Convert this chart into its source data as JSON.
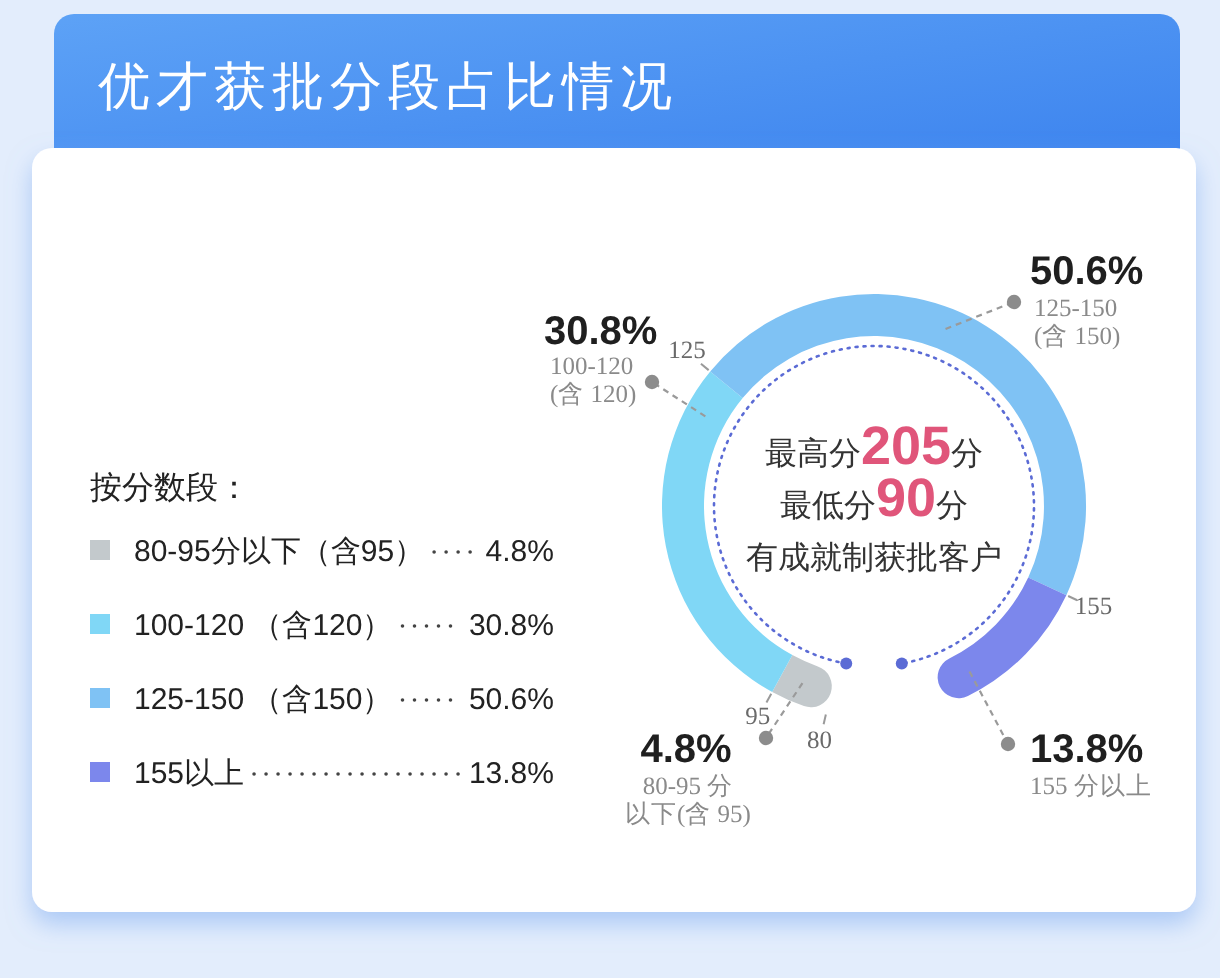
{
  "chart_data": {
    "type": "donut",
    "title": "优才获批分段占比情况",
    "legend_title": "按分数段：",
    "categories": [
      "80-95分以下（含95）",
      "100-120 （含120）",
      "125-150 （含150）",
      "155以上"
    ],
    "values": [
      4.8,
      30.8,
      50.6,
      13.8
    ],
    "value_labels": [
      "4.8%",
      "30.8%",
      "50.6%",
      "13.8%"
    ],
    "colors": [
      "#c3c9cc",
      "#80d7f6",
      "#7fc2f4",
      "#7c87ec"
    ],
    "legend": "left",
    "annotations": [
      "最高分**205**分",
      "最低分**90**分",
      "有成就制获批客户",
      "80-95 分",
      "以下(含 95)",
      "100-120\n(含 120)",
      "125-150\n(含 150)",
      "155 分以上",
      "95",
      "80",
      "125",
      "155"
    ]
  }
}
